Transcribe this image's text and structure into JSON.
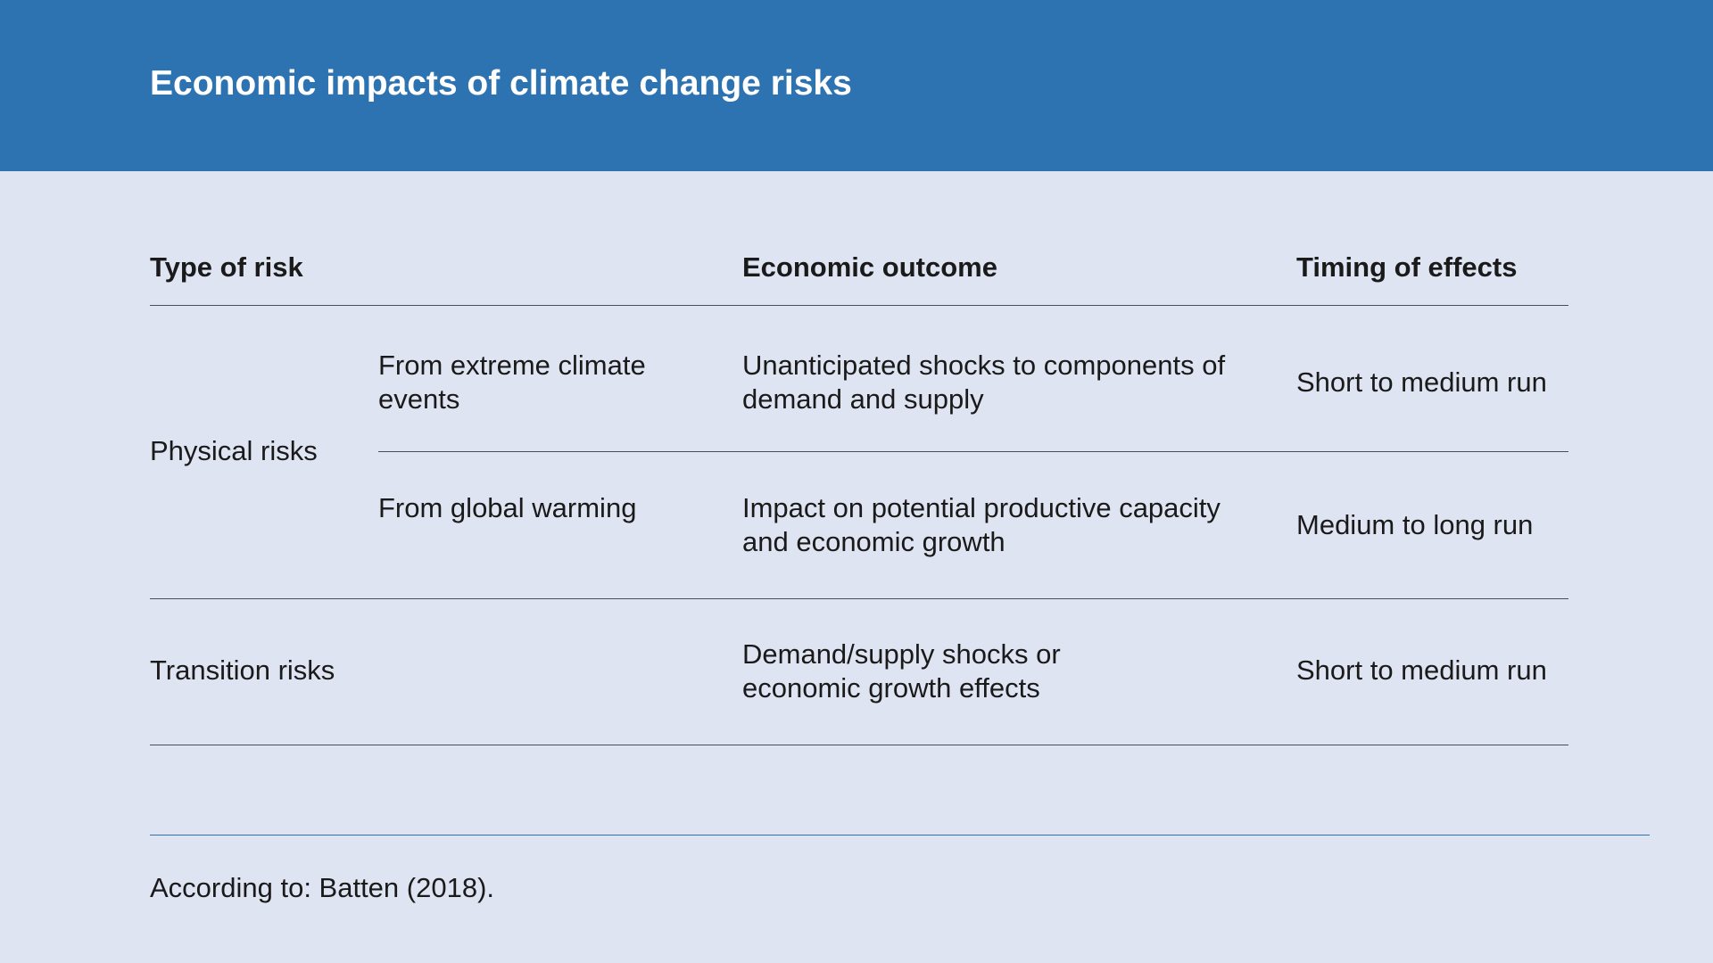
{
  "title": "Economic impacts of climate change risks",
  "table": {
    "headers": [
      "Type of risk",
      "Economic outcome",
      "Timing of effects"
    ],
    "groups": [
      {
        "category": "Physical risks",
        "rows": [
          {
            "subtype": "From extreme climate events",
            "outcome": "Unanticipated shocks to components of demand and supply",
            "timing": "Short to medium run"
          },
          {
            "subtype": "From global warming",
            "outcome": "Impact on potential productive capacity and economic growth",
            "timing": "Medium to long run"
          }
        ]
      },
      {
        "category": "Transition risks",
        "rows": [
          {
            "subtype": "",
            "outcome": "Demand/supply shocks or economic growth effects",
            "timing": "Short to medium run"
          }
        ]
      }
    ]
  },
  "source": "According to: Batten (2018).",
  "colors": {
    "header_background": "#2e73b1",
    "page_background": "#dfe4f2",
    "text": "#1a1a1a",
    "rule": "#4a4d57",
    "source_rule": "#2e73b1"
  }
}
